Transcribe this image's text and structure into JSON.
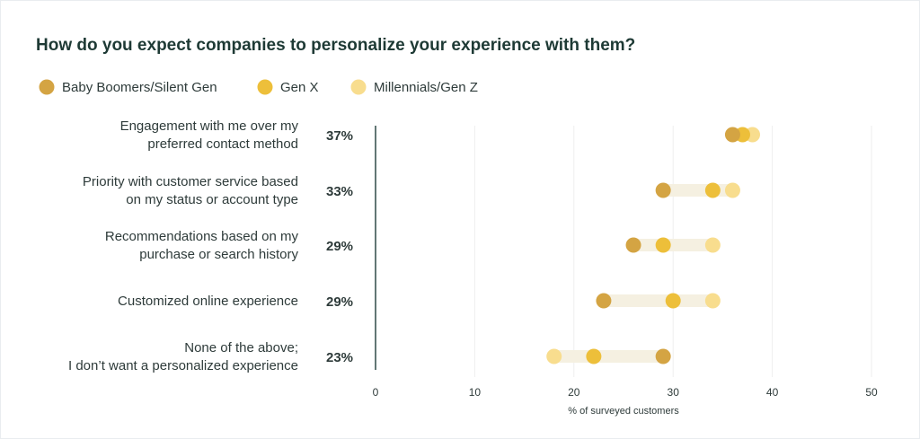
{
  "chart_data": {
    "type": "scatter",
    "title": "How do you expect companies to personalize your experience with them?",
    "xlabel": "% of surveyed customers",
    "xlim": [
      0,
      50
    ],
    "xticks": [
      0,
      10,
      20,
      30,
      40,
      50
    ],
    "grid": true,
    "legend_position": "top-left",
    "colors": {
      "baby_boomers": "#d4a443",
      "gen_x": "#edbf3a",
      "millennials": "#f8dd8e",
      "range_bar": "#f5f0e1",
      "axis": "#2e4a47",
      "grid": "#eeeeee"
    },
    "series": [
      {
        "name": "Baby Boomers/Silent Gen",
        "key": "baby_boomers"
      },
      {
        "name": "Gen X",
        "key": "gen_x"
      },
      {
        "name": "Millennials/Gen Z",
        "key": "millennials"
      }
    ],
    "categories": [
      {
        "label_lines": [
          "Engagement with me over my",
          "preferred contact method"
        ],
        "overall": "37%",
        "values": {
          "baby_boomers": 36,
          "gen_x": 37,
          "millennials": 38
        }
      },
      {
        "label_lines": [
          "Priority with customer service based",
          "on my status or account type"
        ],
        "overall": "33%",
        "values": {
          "baby_boomers": 29,
          "gen_x": 34,
          "millennials": 36
        }
      },
      {
        "label_lines": [
          "Recommendations based on my",
          "purchase or search history"
        ],
        "overall": "29%",
        "values": {
          "baby_boomers": 26,
          "gen_x": 29,
          "millennials": 34
        }
      },
      {
        "label_lines": [
          "Customized online experience"
        ],
        "overall": "29%",
        "values": {
          "baby_boomers": 23,
          "gen_x": 30,
          "millennials": 34
        }
      },
      {
        "label_lines": [
          "None of the above;",
          "I don’t want a personalized experience"
        ],
        "overall": "23%",
        "values": {
          "baby_boomers": 29,
          "gen_x": 22,
          "millennials": 18
        }
      }
    ]
  }
}
